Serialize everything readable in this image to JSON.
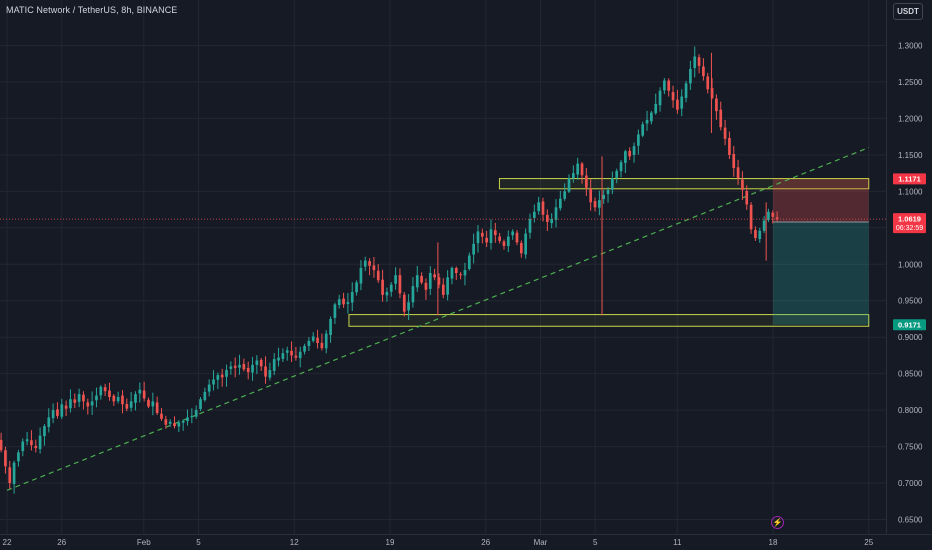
{
  "header": {
    "symbol_title": "MATIC Network / TetherUS, 8h, BINANCE",
    "currency_label": "USDT"
  },
  "chart_data": {
    "type": "candlestick",
    "price_axis": {
      "ticks": [
        "1.3000",
        "1.2500",
        "1.2000",
        "1.1500",
        "1.1000",
        "1.0500",
        "1.0000",
        "0.9500",
        "0.9000",
        "0.8500",
        "0.8000",
        "0.7500",
        "0.7000",
        "0.6500"
      ],
      "ylim": [
        0.636,
        1.363
      ]
    },
    "time_axis": {
      "labels": [
        "22",
        "26",
        "Feb",
        "5",
        "12",
        "19",
        "26",
        "Mar",
        "5",
        "11",
        "18",
        "25"
      ]
    },
    "price_tags": {
      "stop": "1.1171",
      "current_price": "1.0619",
      "countdown": "06:32:59",
      "entry": "1.0580",
      "target": "0.9171"
    },
    "colors": {
      "background": "#161a25",
      "up": "#26a69a",
      "down": "#ef5350",
      "zone_border": "#c8d84a",
      "trendline": "#4caf50",
      "stop_area": "#ef5350",
      "target_area": "#26a69a",
      "current_line": "#ef5350"
    },
    "zones": [
      {
        "from_date": "Feb 27",
        "to_date": "Mar 25",
        "low": 1.1035,
        "high": 1.1175
      },
      {
        "from_date": "Feb 16",
        "to_date": "Mar 25",
        "low": 0.915,
        "high": 0.931
      }
    ],
    "trendline": {
      "from": {
        "date": "Jan 22",
        "price": 0.69
      },
      "to": {
        "date": "Mar 25",
        "price": 1.16
      }
    },
    "position": {
      "type": "short",
      "entry": 1.058,
      "stop": 1.1171,
      "target": 0.9171,
      "from_date": "Mar 18",
      "to_date": "Mar 25"
    },
    "candle_path": [
      0.795,
      0.788,
      0.772,
      0.758,
      0.745,
      0.723,
      0.7,
      0.728,
      0.742,
      0.757,
      0.76,
      0.752,
      0.748,
      0.765,
      0.778,
      0.79,
      0.8,
      0.792,
      0.808,
      0.802,
      0.815,
      0.81,
      0.822,
      0.812,
      0.805,
      0.812,
      0.82,
      0.832,
      0.826,
      0.818,
      0.812,
      0.818,
      0.808,
      0.802,
      0.812,
      0.822,
      0.828,
      0.816,
      0.805,
      0.812,
      0.796,
      0.788,
      0.78,
      0.784,
      0.778,
      0.783,
      0.785,
      0.79,
      0.792,
      0.8,
      0.815,
      0.825,
      0.835,
      0.842,
      0.848,
      0.845,
      0.855,
      0.86,
      0.858,
      0.862,
      0.856,
      0.852,
      0.862,
      0.868,
      0.86,
      0.846,
      0.855,
      0.87,
      0.872,
      0.878,
      0.882,
      0.875,
      0.872,
      0.88,
      0.888,
      0.895,
      0.901,
      0.892,
      0.885,
      0.905,
      0.925,
      0.945,
      0.952,
      0.945,
      0.948,
      0.962,
      0.975,
      0.995,
      1.005,
      0.998,
      0.992,
      0.978,
      0.958,
      0.962,
      0.972,
      0.985,
      0.96,
      0.935,
      0.948,
      0.97,
      0.985,
      0.975,
      0.965,
      0.988,
      0.982,
      0.972,
      0.958,
      0.982,
      0.995,
      0.988,
      0.985,
      0.992,
      1.012,
      1.028,
      1.045,
      1.038,
      1.03,
      1.048,
      1.04,
      1.032,
      1.025,
      1.038,
      1.045,
      1.03,
      1.015,
      1.042,
      1.062,
      1.072,
      1.085,
      1.068,
      1.058,
      1.062,
      1.078,
      1.09,
      1.1,
      1.118,
      1.125,
      1.138,
      1.122,
      1.105,
      1.085,
      1.078,
      1.088,
      1.095,
      1.102,
      1.118,
      1.128,
      1.14,
      1.155,
      1.148,
      1.162,
      1.178,
      1.192,
      1.198,
      1.208,
      1.22,
      1.238,
      1.252,
      1.238,
      1.225,
      1.212,
      1.23,
      1.248,
      1.268,
      1.285,
      1.272,
      1.258,
      1.24,
      1.228,
      1.21,
      1.188,
      1.172,
      1.15,
      1.132,
      1.118,
      1.102,
      1.082,
      1.048,
      1.036,
      1.046,
      1.06,
      1.072,
      1.065,
      1.0619
    ],
    "candle_dates": {
      "first": "Jan 20",
      "last": "Mar 18"
    }
  }
}
